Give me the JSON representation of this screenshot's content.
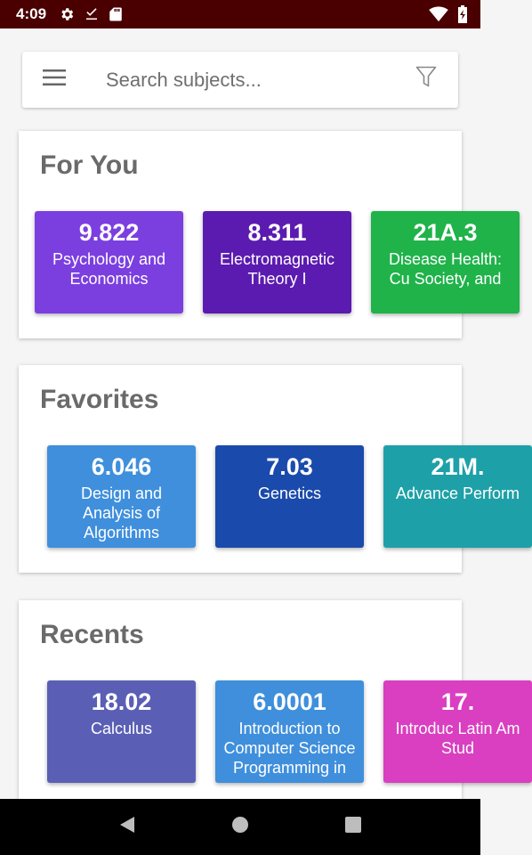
{
  "status_bar": {
    "time": "4:09"
  },
  "search": {
    "placeholder": "Search subjects..."
  },
  "sections": {
    "for_you": {
      "title": "For You",
      "cards": [
        {
          "code": "9.822",
          "name": "Psychology and Economics",
          "color": "#7b3fe0"
        },
        {
          "code": "8.311",
          "name": "Electromagnetic Theory I",
          "color": "#5b1bb0"
        },
        {
          "code": "21A.3",
          "name": "Disease Health: Cu Society, and",
          "color": "#1fb34a"
        }
      ]
    },
    "favorites": {
      "title": "Favorites",
      "cards": [
        {
          "code": "6.046",
          "name": "Design and Analysis of Algorithms",
          "color": "#3f8fdc"
        },
        {
          "code": "7.03",
          "name": "Genetics",
          "color": "#1a4aab"
        },
        {
          "code": "21M.",
          "name": "Advance Perform",
          "color": "#1ea0a8"
        }
      ]
    },
    "recents": {
      "title": "Recents",
      "cards": [
        {
          "code": "18.02",
          "name": "Calculus",
          "color": "#5a5fb5"
        },
        {
          "code": "6.0001",
          "name": "Introduction to Computer Science Programming in",
          "color": "#3f8fdc"
        },
        {
          "code": "17.",
          "name": "Introduc Latin Am Stud",
          "color": "#d93fc0"
        }
      ]
    }
  },
  "colors": {
    "status_bar": "#4a0000",
    "section_title": "#6a6a6a"
  },
  "icons": {
    "status": [
      "gear-icon",
      "download-done-icon",
      "sd-card-icon",
      "wifi-icon",
      "battery-charging-icon"
    ],
    "search": [
      "hamburger-menu-icon",
      "filter-icon"
    ],
    "nav": [
      "back-icon",
      "home-icon",
      "recents-icon"
    ]
  }
}
